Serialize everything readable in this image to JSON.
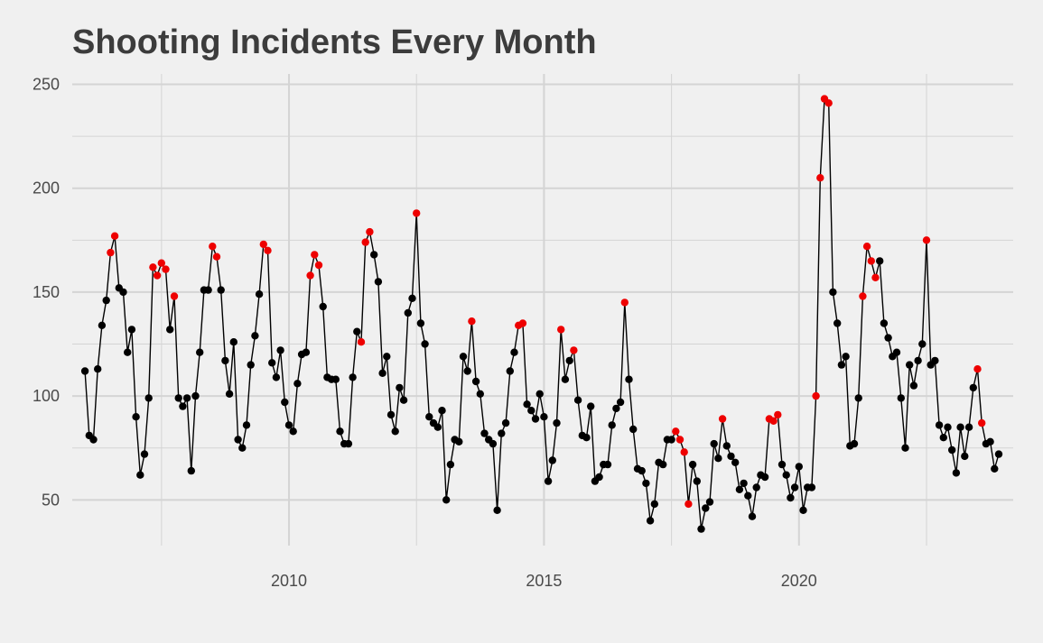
{
  "chart_data": {
    "type": "line",
    "title": "Shooting Incidents Every Month",
    "xlabel": "",
    "ylabel": "",
    "xlim": [
      2005.75,
      2024.2
    ],
    "ylim": [
      28,
      255
    ],
    "x_ticks": [
      "2010",
      "2015",
      "2020"
    ],
    "y_ticks": [
      "50",
      "100",
      "150",
      "200",
      "250"
    ],
    "grid": true,
    "legend": "none",
    "colors": {
      "line": "#000000",
      "point": "#000000",
      "highlight": "#ee0000",
      "grid": "#d4d4d4",
      "background": "#f0f0f0"
    },
    "series": [
      {
        "start": "2006-01",
        "values": [
          112,
          81,
          79,
          113,
          134,
          146,
          169,
          177,
          152,
          150,
          121,
          132,
          90,
          62,
          72,
          99,
          162,
          158,
          164,
          161,
          132,
          148,
          99,
          95,
          99,
          64,
          100,
          121,
          151,
          151,
          172,
          167,
          151,
          117,
          101,
          126,
          79,
          75,
          86,
          115,
          129,
          149,
          173,
          170,
          116,
          109,
          122,
          97,
          86,
          83,
          106,
          120,
          121,
          158,
          168,
          163,
          143,
          109,
          108,
          108,
          83,
          77,
          77,
          109,
          131,
          126,
          174,
          179,
          168,
          155,
          111,
          119,
          91,
          83,
          104,
          98,
          140,
          147,
          188,
          135,
          125,
          90,
          87,
          85,
          93,
          50,
          67,
          79,
          78,
          119,
          112,
          136,
          107,
          101,
          82,
          79,
          77,
          45,
          82,
          87,
          112,
          121,
          134,
          135,
          96,
          93,
          89,
          101,
          90,
          59,
          69,
          87,
          132,
          108,
          117,
          122,
          98,
          81,
          80,
          95,
          59,
          61,
          67,
          67,
          86,
          94,
          97,
          145,
          108,
          84,
          65,
          64,
          58,
          40,
          48,
          68,
          67,
          79,
          79,
          83,
          79,
          73,
          48,
          67,
          59,
          36,
          46,
          49,
          77,
          70,
          89,
          76,
          71,
          68,
          55,
          58,
          52,
          42,
          56,
          62,
          61,
          89,
          88,
          91,
          67,
          62,
          51,
          56,
          66,
          45,
          56,
          56,
          100,
          205,
          243,
          241,
          150,
          135,
          115,
          119,
          76,
          77,
          99,
          148,
          172,
          165,
          157,
          165,
          135,
          128,
          119,
          121,
          99,
          75,
          115,
          105,
          117,
          125,
          175,
          115,
          117,
          86,
          80,
          85,
          74,
          63,
          85,
          71,
          85,
          104,
          113,
          87,
          77,
          78,
          65,
          72
        ],
        "highlight_indices": [
          6,
          7,
          16,
          17,
          18,
          19,
          21,
          30,
          31,
          42,
          43,
          53,
          54,
          55,
          65,
          66,
          67,
          78,
          91,
          102,
          103,
          112,
          115,
          127,
          139,
          140,
          141,
          142,
          150,
          161,
          162,
          163,
          172,
          173,
          174,
          175,
          183,
          184,
          185,
          186,
          198,
          210,
          211
        ]
      }
    ]
  }
}
